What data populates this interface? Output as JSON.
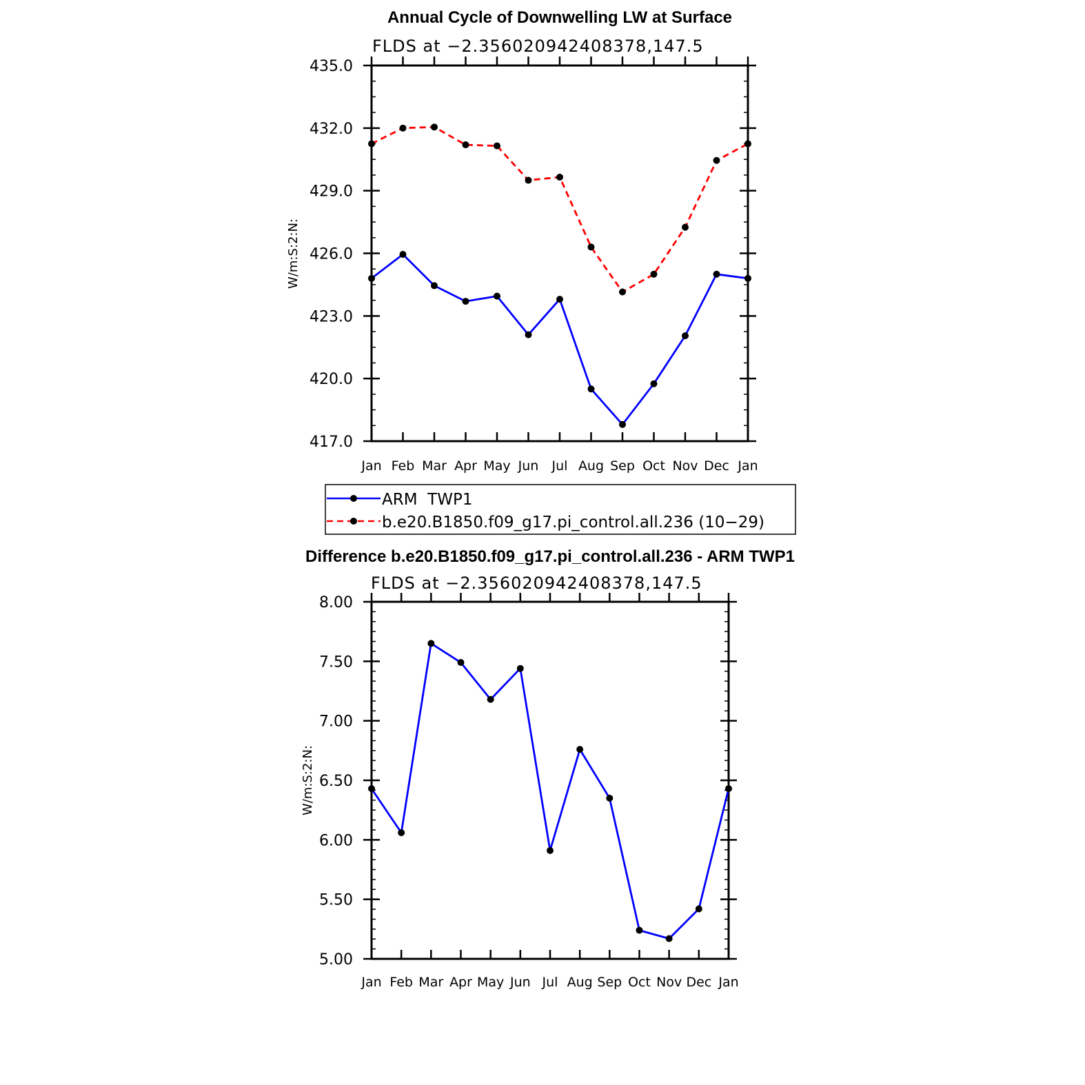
{
  "chart_data": [
    {
      "type": "line",
      "title": "Annual Cycle of Downwelling LW at Surface",
      "subtitle": "FLDS at −2.356020942408378,147.5",
      "ylabel": "W/m:S:2:N:",
      "xlabel": "",
      "categories": [
        "Jan",
        "Feb",
        "Mar",
        "Apr",
        "May",
        "Jun",
        "Jul",
        "Aug",
        "Sep",
        "Oct",
        "Nov",
        "Dec",
        "Jan"
      ],
      "ylim": [
        417.0,
        435.0
      ],
      "yticks": [
        "417.0",
        "420.0",
        "423.0",
        "426.0",
        "429.0",
        "432.0",
        "435.0"
      ],
      "series": [
        {
          "name": "ARM  TWP1",
          "color": "#0000ff",
          "dash": "solid",
          "values": [
            424.8,
            425.95,
            424.45,
            423.7,
            423.95,
            422.1,
            423.8,
            419.5,
            417.8,
            419.75,
            422.05,
            425.0,
            424.8
          ]
        },
        {
          "name": "b.e20.B1850.f09_g17.pi_control.all.236 (10−29)",
          "color": "#ff0000",
          "dash": "dashed",
          "values": [
            431.25,
            432.0,
            432.05,
            431.2,
            431.15,
            429.5,
            429.65,
            426.3,
            424.15,
            425.0,
            427.25,
            430.45,
            431.25
          ]
        }
      ],
      "legend_position": "below"
    },
    {
      "type": "line",
      "title": "Difference b.e20.B1850.f09_g17.pi_control.all.236 - ARM TWP1",
      "subtitle": "FLDS at −2.356020942408378,147.5",
      "ylabel": "W/m:S:2:N:",
      "xlabel": "",
      "categories": [
        "Jan",
        "Feb",
        "Mar",
        "Apr",
        "May",
        "Jun",
        "Jul",
        "Aug",
        "Sep",
        "Oct",
        "Nov",
        "Dec",
        "Jan"
      ],
      "ylim": [
        5.0,
        8.0
      ],
      "yticks": [
        "5.00",
        "5.50",
        "6.00",
        "6.50",
        "7.00",
        "7.50",
        "8.00"
      ],
      "series": [
        {
          "color": "#0000ff",
          "dash": "solid",
          "values": [
            6.43,
            6.06,
            7.65,
            7.49,
            7.18,
            7.44,
            5.91,
            6.76,
            6.35,
            5.24,
            5.17,
            5.42,
            6.43
          ]
        }
      ]
    }
  ]
}
